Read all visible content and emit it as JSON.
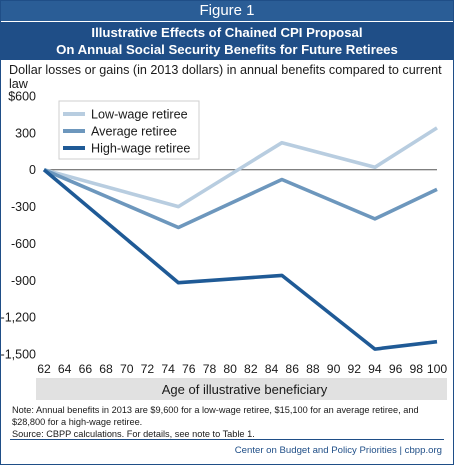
{
  "figure_label": "Figure 1",
  "title_line1": "Illustrative Effects of Chained CPI Proposal",
  "title_line2": "On Annual Social Security Benefits for Future Retirees",
  "note": "Note:  Annual benefits in 2013 are $9,600 for a low-wage retiree, $15,100 for an average retiree, and $28,800 for a high-wage retiree.",
  "source": "Source: CBPP calculations. For details, see note to Table 1.",
  "footer": "Center on Budget and Policy Priorities | cbpp.org",
  "chart_data": {
    "type": "line",
    "subtitle": "Dollar losses or gains (in 2013 dollars) in annual benefits compared to current law",
    "xlabel": "Age of  illustrative beneficiary",
    "ylabel": "",
    "xlim": [
      62,
      100
    ],
    "ylim": [
      -1500,
      600
    ],
    "x_ticks": [
      62,
      64,
      66,
      68,
      70,
      72,
      74,
      76,
      78,
      80,
      82,
      84,
      86,
      88,
      90,
      92,
      94,
      96,
      98,
      100
    ],
    "y_ticks": [
      600,
      300,
      0,
      -300,
      -600,
      -900,
      -1200,
      -1500
    ],
    "y_tick_labels": [
      "$600",
      "300",
      "0",
      "-300",
      "-600",
      "-900",
      "-1,200",
      "-1,500"
    ],
    "grid": false,
    "legend_position": "top-left",
    "series": [
      {
        "name": "Low-wage retiree",
        "color": "#b8cde0",
        "points": [
          [
            62,
            0
          ],
          [
            75,
            -300
          ],
          [
            85,
            220
          ],
          [
            94,
            20
          ],
          [
            100,
            340
          ]
        ]
      },
      {
        "name": "Average retiree",
        "color": "#6d97bd",
        "points": [
          [
            62,
            0
          ],
          [
            75,
            -470
          ],
          [
            85,
            -80
          ],
          [
            94,
            -400
          ],
          [
            100,
            -160
          ]
        ]
      },
      {
        "name": "High-wage retiree",
        "color": "#1f5a96",
        "points": [
          [
            62,
            0
          ],
          [
            75,
            -920
          ],
          [
            85,
            -860
          ],
          [
            94,
            -1460
          ],
          [
            100,
            -1400
          ]
        ]
      }
    ]
  }
}
